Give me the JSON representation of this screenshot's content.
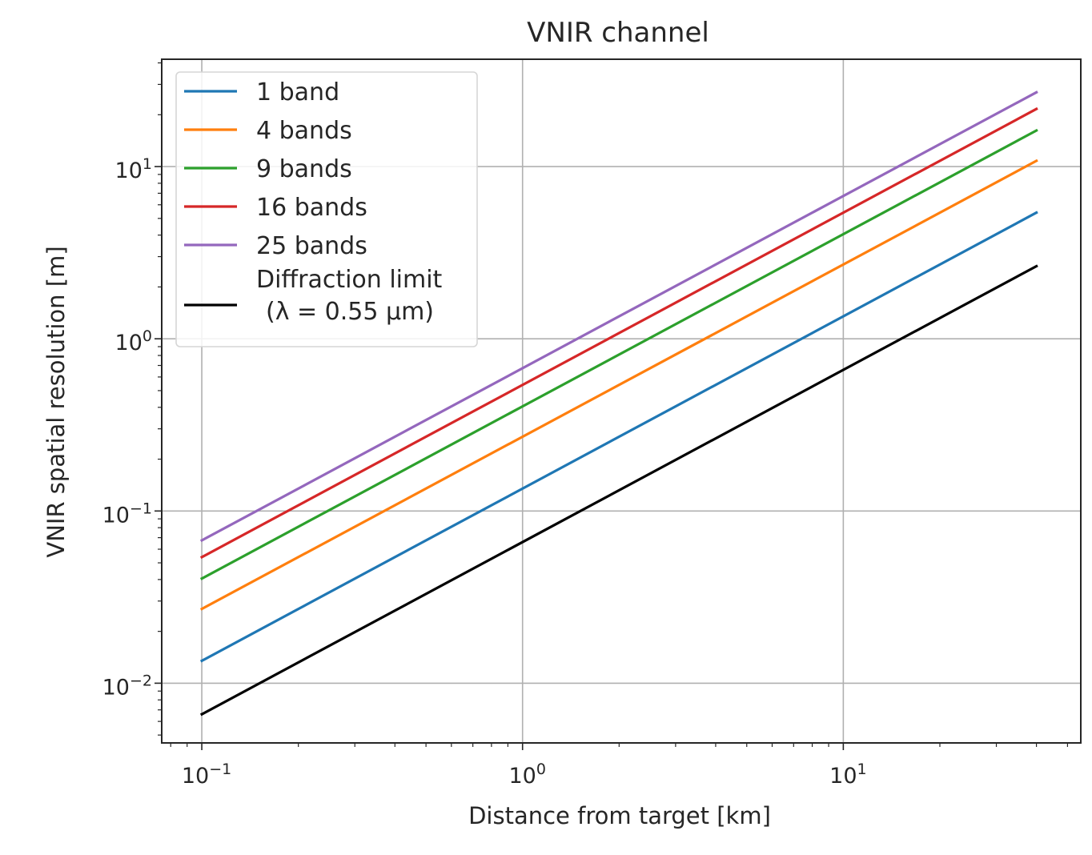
{
  "chart_data": {
    "type": "line",
    "title": "VNIR channel",
    "xlabel": "Distance from target [km]",
    "ylabel": "VNIR spatial resolution [m]",
    "xscale": "log",
    "yscale": "log",
    "xlim": [
      0.075,
      55
    ],
    "ylim": [
      0.0045,
      42
    ],
    "grid": true,
    "legend_position": "top-left",
    "x": [
      0.1,
      40
    ],
    "xticks": [
      {
        "value": 0.1,
        "base": "10",
        "exp": "−1"
      },
      {
        "value": 1,
        "base": "10",
        "exp": "0"
      },
      {
        "value": 10,
        "base": "10",
        "exp": "1"
      }
    ],
    "yticks": [
      {
        "value": 0.01,
        "base": "10",
        "exp": "−2"
      },
      {
        "value": 0.1,
        "base": "10",
        "exp": "−1"
      },
      {
        "value": 1,
        "base": "10",
        "exp": "0"
      },
      {
        "value": 10,
        "base": "10",
        "exp": "1"
      }
    ],
    "series": [
      {
        "name": "1 band",
        "color": "#1f77b4",
        "values": [
          0.0135,
          5.4
        ]
      },
      {
        "name": "4 bands",
        "color": "#ff7f0e",
        "values": [
          0.027,
          10.8
        ]
      },
      {
        "name": "9 bands",
        "color": "#2ca02c",
        "values": [
          0.0405,
          16.2
        ]
      },
      {
        "name": "16 bands",
        "color": "#d62728",
        "values": [
          0.054,
          21.6
        ]
      },
      {
        "name": "25 bands",
        "color": "#9467bd",
        "values": [
          0.0675,
          27.0
        ]
      },
      {
        "name": "Diffraction limit",
        "name_line2": "(λ = 0.55 μm)",
        "color": "#000000",
        "values": [
          0.0066,
          2.64
        ]
      }
    ]
  }
}
